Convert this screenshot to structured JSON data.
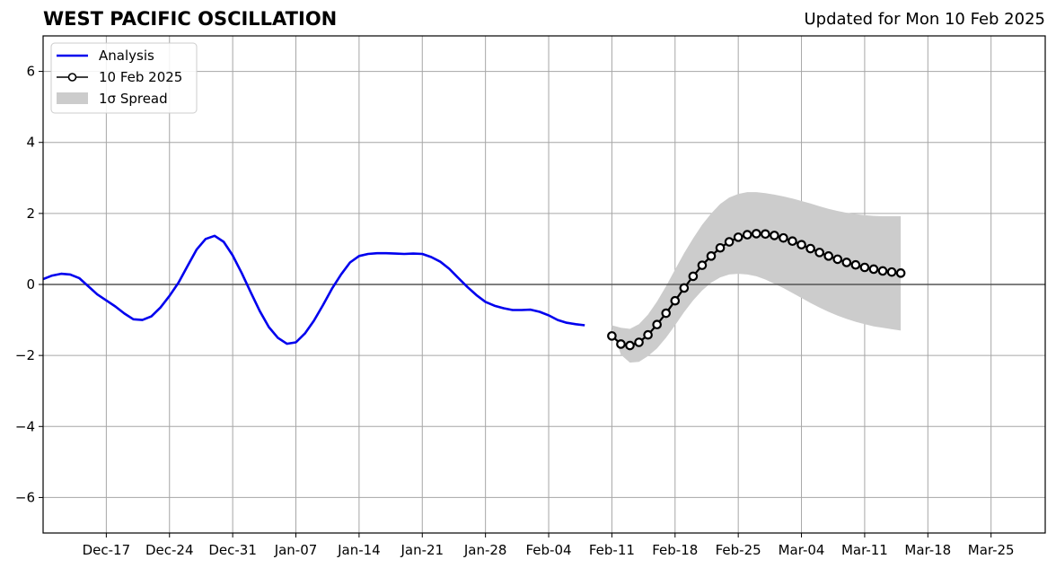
{
  "header": {
    "title": "WEST PACIFIC OSCILLATION",
    "updated": "Updated for Mon 10 Feb 2025"
  },
  "chart_data": {
    "type": "line",
    "x_start": "2024-12-10",
    "x_end": "2025-03-31",
    "ylim": [
      -7,
      7
    ],
    "yticks": [
      -6,
      -4,
      -2,
      0,
      2,
      4,
      6
    ],
    "ytick_labels": [
      "−6",
      "−4",
      "−2",
      "0",
      "2",
      "4",
      "6"
    ],
    "xticks": [
      "2024-12-17",
      "2024-12-24",
      "2024-12-31",
      "2025-01-07",
      "2025-01-14",
      "2025-01-21",
      "2025-01-28",
      "2025-02-04",
      "2025-02-11",
      "2025-02-18",
      "2025-02-25",
      "2025-03-04",
      "2025-03-11",
      "2025-03-18",
      "2025-03-25"
    ],
    "xtick_labels": [
      "Dec-17",
      "Dec-24",
      "Dec-31",
      "Jan-07",
      "Jan-14",
      "Jan-21",
      "Jan-28",
      "Feb-04",
      "Feb-11",
      "Feb-18",
      "Feb-25",
      "Mar-04",
      "Mar-11",
      "Mar-18",
      "Mar-25"
    ],
    "grid": true,
    "legend_position": "top-left",
    "legend": [
      {
        "label": "Analysis",
        "kind": "line",
        "color": "#0000ee"
      },
      {
        "label": "10 Feb 2025",
        "kind": "line-marker",
        "color": "#000000"
      },
      {
        "label": "1σ Spread",
        "kind": "patch",
        "color": "#cccccc"
      }
    ],
    "analysis": {
      "start": "2024-12-10",
      "values": [
        0.15,
        0.25,
        0.3,
        0.28,
        0.18,
        -0.05,
        -0.28,
        -0.45,
        -0.62,
        -0.82,
        -0.98,
        -1.0,
        -0.9,
        -0.65,
        -0.32,
        0.05,
        0.52,
        0.98,
        1.28,
        1.37,
        1.2,
        0.82,
        0.32,
        -0.22,
        -0.75,
        -1.2,
        -1.5,
        -1.67,
        -1.63,
        -1.38,
        -1.02,
        -0.58,
        -0.12,
        0.28,
        0.62,
        0.8,
        0.86,
        0.88,
        0.88,
        0.87,
        0.86,
        0.87,
        0.86,
        0.77,
        0.64,
        0.44,
        0.18,
        -0.07,
        -0.3,
        -0.49,
        -0.6,
        -0.67,
        -0.72,
        -0.72,
        -0.71,
        -0.77,
        -0.87,
        -1.0,
        -1.08,
        -1.12,
        -1.15
      ]
    },
    "forecast": {
      "start": "2025-02-11",
      "values": [
        -1.45,
        -1.68,
        -1.72,
        -1.63,
        -1.42,
        -1.13,
        -0.81,
        -0.46,
        -0.1,
        0.23,
        0.54,
        0.8,
        1.03,
        1.2,
        1.33,
        1.4,
        1.43,
        1.42,
        1.38,
        1.31,
        1.22,
        1.12,
        1.01,
        0.9,
        0.8,
        0.71,
        0.62,
        0.55,
        0.48,
        0.43,
        0.38,
        0.35,
        0.32
      ]
    },
    "spread": {
      "start": "2025-02-11",
      "upper": [
        -1.15,
        -1.22,
        -1.25,
        -1.12,
        -0.85,
        -0.48,
        -0.05,
        0.42,
        0.88,
        1.3,
        1.68,
        2.0,
        2.27,
        2.45,
        2.55,
        2.6,
        2.6,
        2.57,
        2.53,
        2.48,
        2.42,
        2.35,
        2.28,
        2.2,
        2.13,
        2.07,
        2.02,
        1.98,
        1.95,
        1.93,
        1.92,
        1.92,
        1.92
      ],
      "lower": [
        -1.2,
        -1.98,
        -2.2,
        -2.18,
        -2.02,
        -1.8,
        -1.5,
        -1.15,
        -0.78,
        -0.45,
        -0.17,
        0.05,
        0.2,
        0.28,
        0.3,
        0.28,
        0.23,
        0.14,
        0.02,
        -0.1,
        -0.24,
        -0.38,
        -0.52,
        -0.65,
        -0.77,
        -0.88,
        -0.97,
        -1.05,
        -1.12,
        -1.18,
        -1.22,
        -1.26,
        -1.3
      ]
    }
  }
}
